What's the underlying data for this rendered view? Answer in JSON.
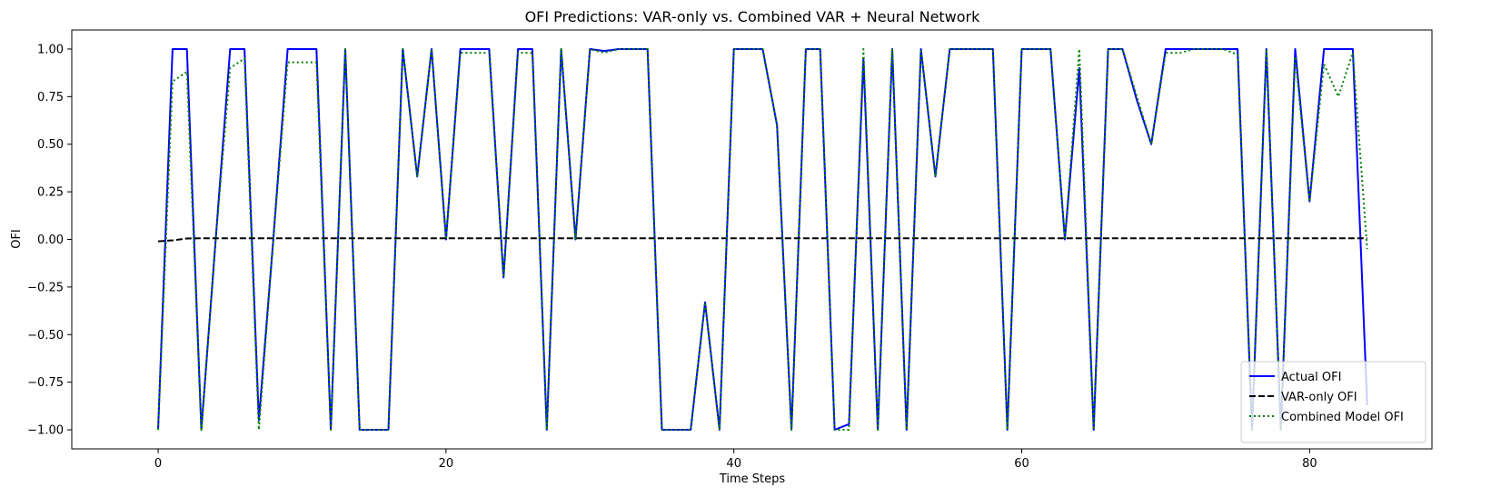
{
  "chart_data": {
    "type": "line",
    "title": "OFI Predictions: VAR-only vs. Combined VAR + Neural Network",
    "xlabel": "Time Steps",
    "ylabel": "OFI",
    "xlim": [
      -6,
      88.5
    ],
    "ylim": [
      -1.1,
      1.1
    ],
    "x_ticks": [
      0,
      20,
      40,
      60,
      80
    ],
    "y_ticks": [
      -1.0,
      -0.75,
      -0.5,
      -0.25,
      0.0,
      0.25,
      0.5,
      0.75,
      1.0
    ],
    "x_tick_labels": [
      "0",
      "20",
      "40",
      "60",
      "80"
    ],
    "y_tick_labels": [
      "−1.00",
      "−0.75",
      "−0.50",
      "−0.25",
      "0.00",
      "0.25",
      "0.50",
      "0.75",
      "1.00"
    ],
    "grid": false,
    "legend_position": "lower-right",
    "x": [
      0,
      1,
      2,
      3,
      4,
      5,
      6,
      7,
      8,
      9,
      10,
      11,
      12,
      13,
      14,
      15,
      16,
      17,
      18,
      19,
      20,
      21,
      22,
      23,
      24,
      25,
      26,
      27,
      28,
      29,
      30,
      31,
      32,
      33,
      34,
      35,
      36,
      37,
      38,
      39,
      40,
      41,
      42,
      43,
      44,
      45,
      46,
      47,
      48,
      49,
      50,
      51,
      52,
      53,
      54,
      55,
      56,
      57,
      58,
      59,
      60,
      61,
      62,
      63,
      64,
      65,
      66,
      67,
      68,
      69,
      70,
      71,
      72,
      73,
      74,
      75,
      76,
      77,
      78,
      79,
      80,
      81,
      82,
      83,
      84
    ],
    "series": [
      {
        "name": "Actual OFI",
        "color": "#0000ff",
        "style": "solid",
        "values": [
          -1,
          1,
          1,
          -1,
          0,
          1,
          1,
          -0.95,
          0,
          1,
          1,
          1,
          -1,
          1,
          -1,
          -1,
          -1,
          1,
          0.33,
          1,
          0,
          1,
          1,
          1,
          -0.2,
          1,
          1,
          -1,
          1,
          0,
          1,
          0.99,
          1,
          1,
          1,
          -1,
          -1,
          -1,
          -0.33,
          -1,
          1,
          1,
          1,
          0.6,
          -1,
          1,
          1,
          -1,
          -0.97,
          0.95,
          -1,
          1,
          -1,
          1,
          0.33,
          1,
          1,
          1,
          1,
          -1,
          1,
          1,
          1,
          0,
          0.9,
          -1,
          1,
          1,
          0.73,
          0.5,
          1,
          1,
          1,
          1,
          1,
          1,
          -1,
          1,
          -1,
          1,
          0.2,
          1,
          1,
          1,
          -0.87
        ]
      },
      {
        "name": "VAR-only OFI",
        "color": "#000000",
        "style": "dashed",
        "values": [
          -0.01,
          -0.005,
          0.005,
          0.006,
          0.006,
          0.006,
          0.006,
          0.006,
          0.006,
          0.006,
          0.006,
          0.006,
          0.006,
          0.006,
          0.006,
          0.006,
          0.006,
          0.006,
          0.006,
          0.006,
          0.006,
          0.006,
          0.006,
          0.006,
          0.006,
          0.006,
          0.006,
          0.006,
          0.006,
          0.006,
          0.006,
          0.006,
          0.006,
          0.006,
          0.006,
          0.006,
          0.006,
          0.006,
          0.006,
          0.006,
          0.006,
          0.006,
          0.006,
          0.006,
          0.006,
          0.006,
          0.006,
          0.006,
          0.006,
          0.006,
          0.006,
          0.006,
          0.006,
          0.006,
          0.006,
          0.006,
          0.006,
          0.006,
          0.006,
          0.006,
          0.006,
          0.006,
          0.006,
          0.006,
          0.006,
          0.006,
          0.006,
          0.006,
          0.006,
          0.006,
          0.006,
          0.006,
          0.006,
          0.006,
          0.006,
          0.006,
          0.006,
          0.006,
          0.006,
          0.006,
          0.006,
          0.006,
          0.006,
          0.006,
          0.006
        ]
      },
      {
        "name": "Combined Model OFI",
        "color": "#008000",
        "style": "dotted",
        "values": [
          -1,
          0.83,
          0.88,
          -1,
          0,
          0.9,
          0.95,
          -1,
          0,
          0.93,
          0.93,
          0.93,
          -1,
          1,
          -1,
          -1,
          -1,
          1,
          0.33,
          1,
          0,
          0.98,
          0.98,
          0.98,
          -0.2,
          0.98,
          0.98,
          -1,
          1,
          0,
          1,
          0.98,
          1,
          1,
          1,
          -1,
          -1,
          -1,
          -0.33,
          -1,
          1,
          1,
          1,
          0.6,
          -1,
          1,
          1,
          -1,
          -1,
          1,
          -1,
          1,
          -1,
          1,
          0.33,
          1,
          1,
          1,
          1,
          -1,
          1,
          1,
          1,
          0,
          1,
          -1,
          1,
          1,
          0.75,
          0.5,
          0.98,
          0.98,
          1,
          1,
          1,
          0.97,
          -1,
          1,
          -1,
          0.96,
          0.2,
          0.92,
          0.75,
          0.98,
          -0.05
        ]
      }
    ]
  }
}
